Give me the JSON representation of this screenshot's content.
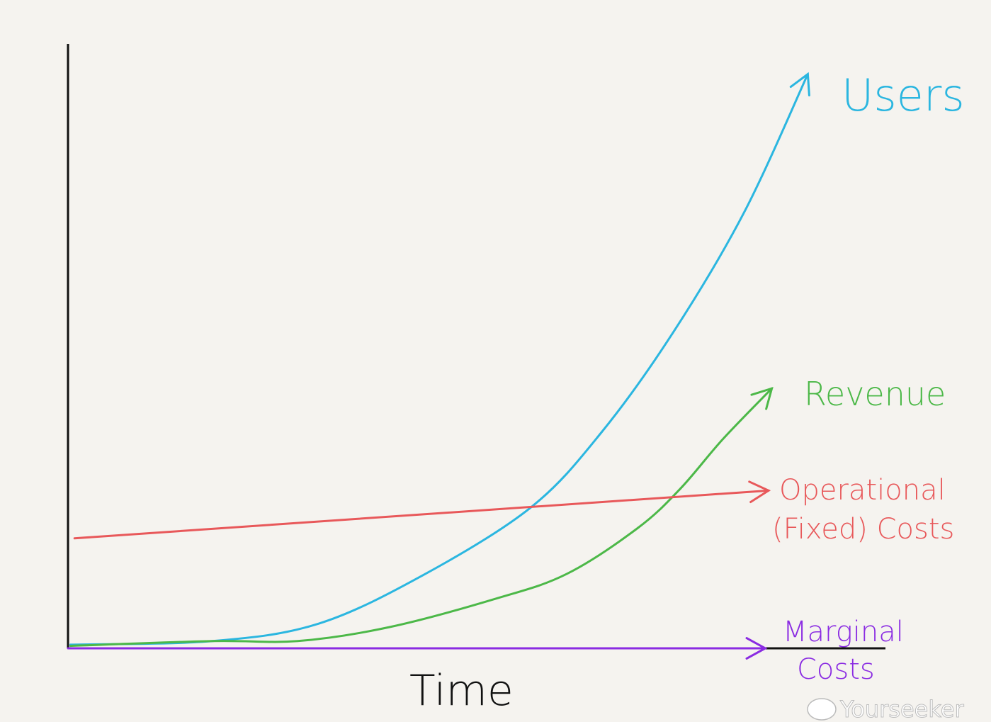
{
  "chart_data": {
    "type": "line",
    "title": "",
    "xlabel": "Time",
    "ylabel": "",
    "xlim": [
      0,
      100
    ],
    "ylim": [
      0,
      100
    ],
    "grid": false,
    "legend": "none (labels at line ends)",
    "series": [
      {
        "name": "Users",
        "color": "#2bb6e0",
        "x": [
          0.3,
          17.7,
          30.7,
          43.7,
          56.7,
          65.3,
          74.0,
          82.7,
          90.5
        ],
        "y": [
          0.6,
          1.2,
          4.1,
          12.3,
          23.4,
          35.8,
          52.2,
          72.1,
          95.0
        ]
      },
      {
        "name": "Revenue",
        "color": "#4cb848",
        "x": [
          0.3,
          17.7,
          28.1,
          39.3,
          52.3,
          61.0,
          69.7,
          74.9,
          80.1,
          86.1
        ],
        "y": [
          0.4,
          1.2,
          1.2,
          3.5,
          8.2,
          12.3,
          19.9,
          26.4,
          34.6,
          43.0
        ]
      },
      {
        "name": "Operational (Fixed) Costs",
        "name_lines": [
          "Operational",
          "(Fixed) Costs"
        ],
        "color": "#e8585a",
        "x": [
          0.8,
          85.7
        ],
        "y": [
          18.2,
          26.1
        ]
      },
      {
        "name": "Marginal Costs",
        "name_lines": [
          "Marginal",
          "Costs"
        ],
        "color": "#8a2be2",
        "x": [
          0,
          85.3
        ],
        "y": [
          0,
          0
        ]
      }
    ]
  },
  "watermark": "Yourseeker"
}
